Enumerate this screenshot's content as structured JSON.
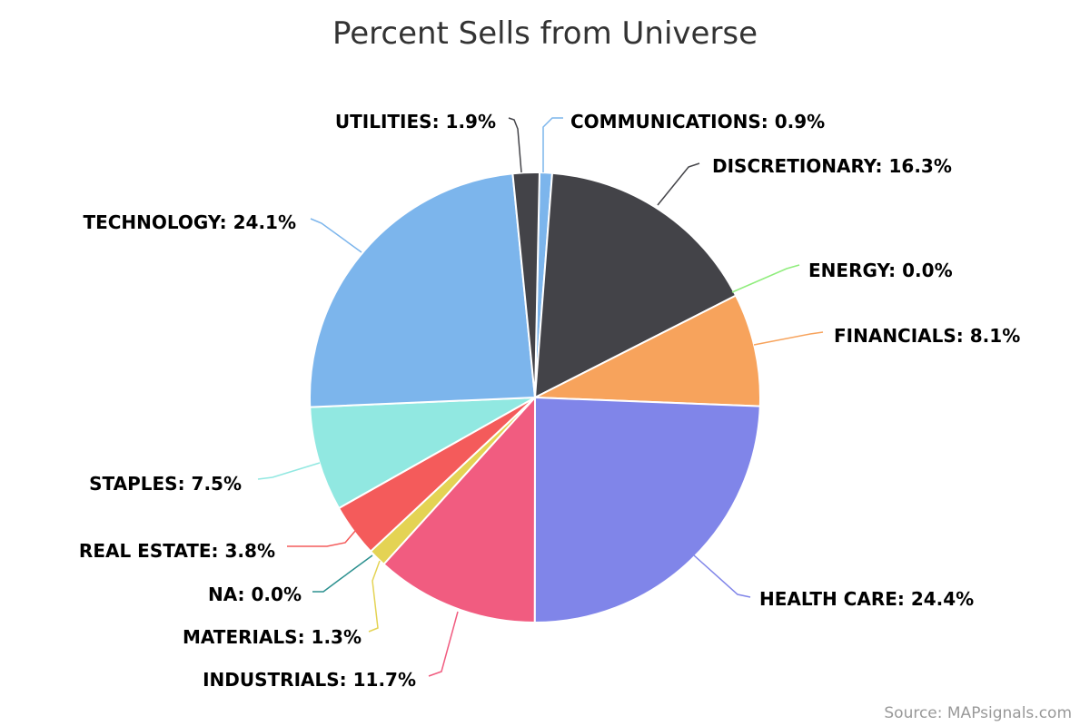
{
  "chart_data": {
    "type": "pie",
    "title": "Percent Sells from Universe",
    "credit": "Source: MAPsignals.com",
    "slices": [
      {
        "name": "COMMUNICATIONS",
        "value": 0.9,
        "label": "COMMUNICATIONS: 0.9%",
        "color": "#7cb5ec"
      },
      {
        "name": "DISCRETIONARY",
        "value": 16.3,
        "label": "DISCRETIONARY: 16.3%",
        "color": "#434348"
      },
      {
        "name": "ENERGY",
        "value": 0.0,
        "label": "ENERGY: 0.0%",
        "color": "#90ed7d"
      },
      {
        "name": "FINANCIALS",
        "value": 8.1,
        "label": "FINANCIALS: 8.1%",
        "color": "#f7a35c"
      },
      {
        "name": "HEALTH CARE",
        "value": 24.4,
        "label": "HEALTH CARE: 24.4%",
        "color": "#8085e9"
      },
      {
        "name": "INDUSTRIALS",
        "value": 11.7,
        "label": "INDUSTRIALS: 11.7%",
        "color": "#f15c80"
      },
      {
        "name": "MATERIALS",
        "value": 1.3,
        "label": "MATERIALS: 1.3%",
        "color": "#e4d354"
      },
      {
        "name": "NA",
        "value": 0.0,
        "label": "NA: 0.0%",
        "color": "#2b908f"
      },
      {
        "name": "REAL ESTATE",
        "value": 3.8,
        "label": "REAL ESTATE: 3.8%",
        "color": "#f45b5b"
      },
      {
        "name": "STAPLES",
        "value": 7.5,
        "label": "STAPLES: 7.5%",
        "color": "#91e8e1"
      },
      {
        "name": "TECHNOLOGY",
        "value": 24.1,
        "label": "TECHNOLOGY: 24.1%",
        "color": "#7cb5ec"
      },
      {
        "name": "UTILITIES",
        "value": 1.9,
        "label": "UTILITIES: 1.9%",
        "color": "#434348"
      }
    ]
  }
}
